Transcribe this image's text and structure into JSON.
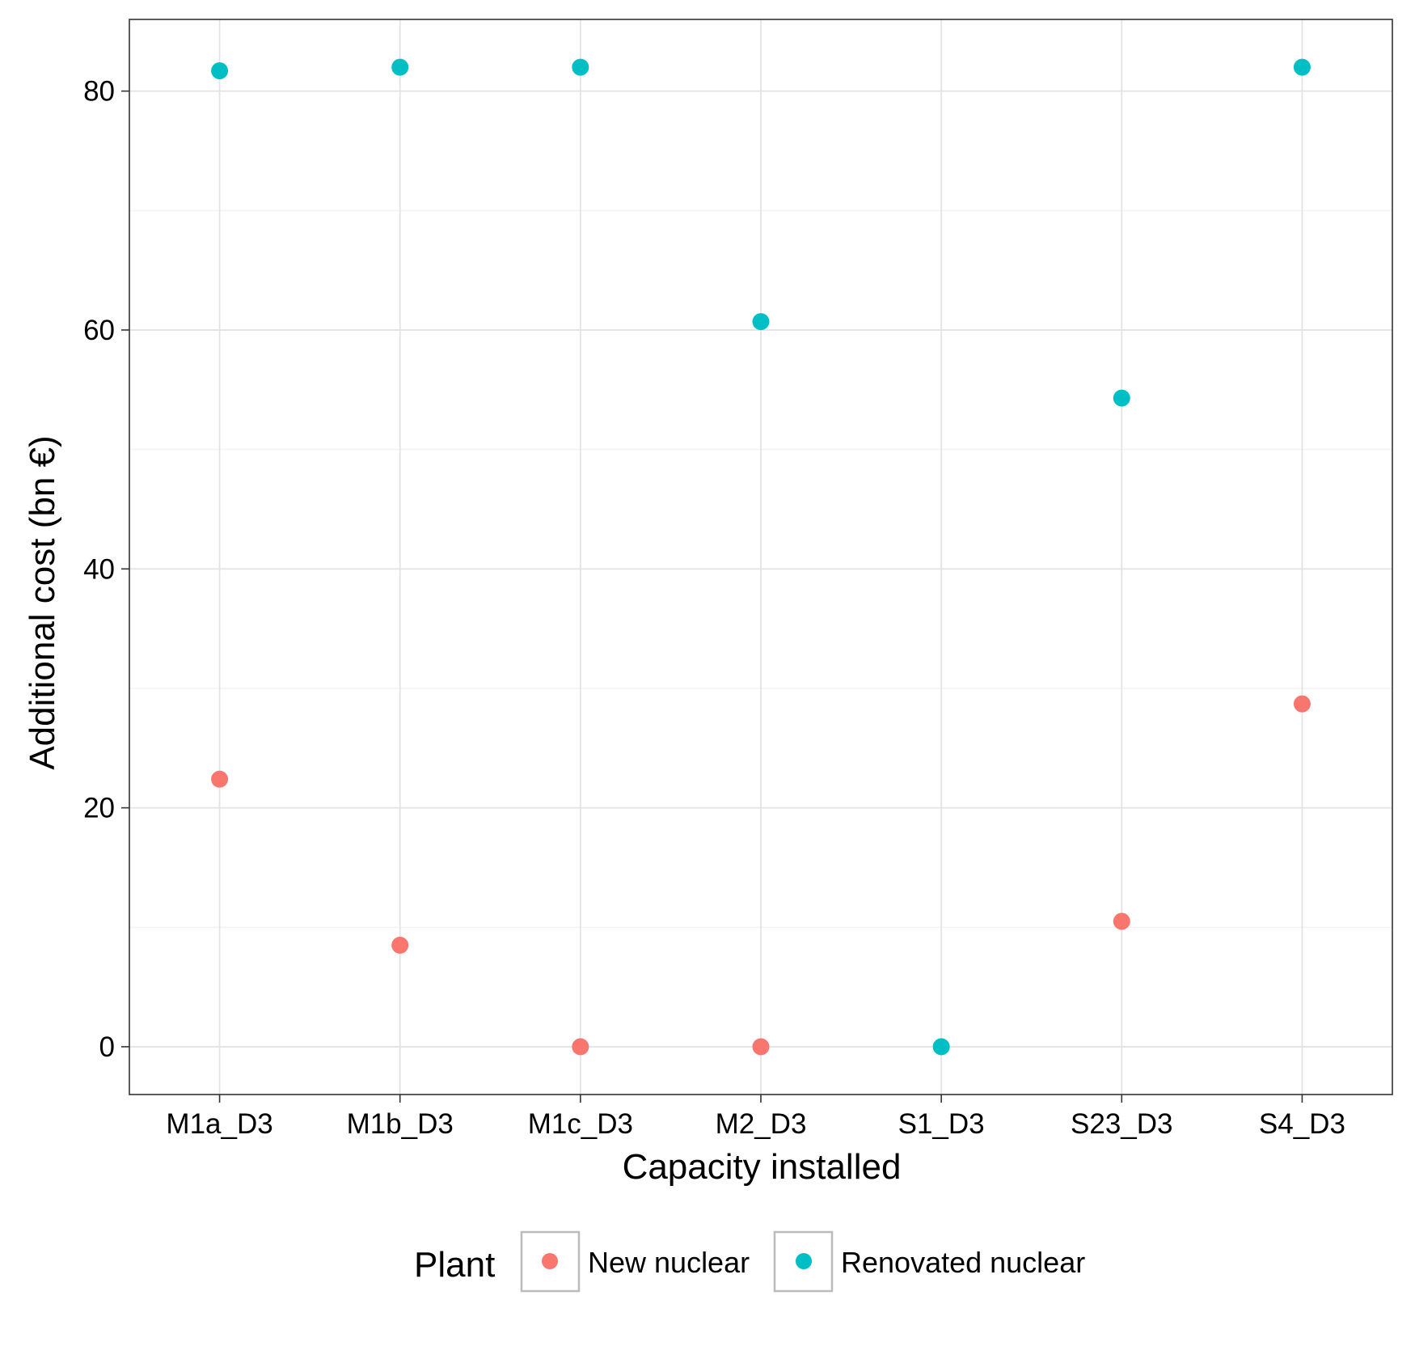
{
  "chart_data": {
    "type": "scatter",
    "title": "",
    "xlabel": "Capacity installed",
    "ylabel": "Additional cost (bn €)",
    "categories": [
      "M1a_D3",
      "M1b_D3",
      "M1c_D3",
      "M2_D3",
      "S1_D3",
      "S23_D3",
      "S4_D3"
    ],
    "ylim": [
      -4,
      86
    ],
    "yticks": [
      0,
      20,
      40,
      60,
      80
    ],
    "grid": true,
    "legend": {
      "title": "Plant",
      "placement": "bottom"
    },
    "series": [
      {
        "name": "New nuclear",
        "color": "#F8766D",
        "values": [
          22.4,
          8.5,
          0,
          0,
          null,
          10.5,
          28.7
        ]
      },
      {
        "name": "Renovated nuclear",
        "color": "#00BFC4",
        "values": [
          81.7,
          82.0,
          82.0,
          60.7,
          0,
          54.3,
          82.0
        ]
      }
    ]
  }
}
